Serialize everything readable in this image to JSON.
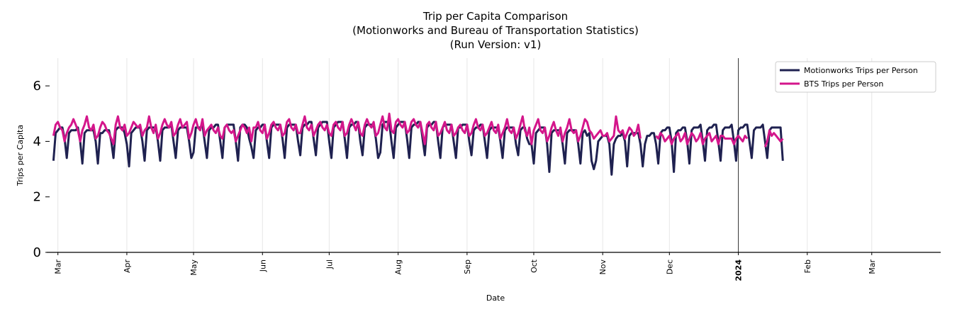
{
  "chart_data": {
    "type": "line",
    "title": [
      "Trip per Capita Comparison",
      "(Motionworks and Bureau of Transportation Statistics)",
      "(Run Version: v1)"
    ],
    "xlabel": "Date",
    "ylabel": "Trips per Capita",
    "xlim": [
      "2023-02-24",
      "2024-04-01"
    ],
    "ylim": [
      0,
      7
    ],
    "yticks": [
      0,
      2,
      4,
      6
    ],
    "xticks": [
      {
        "date": "2023-03-01",
        "label": "Mar"
      },
      {
        "date": "2023-04-01",
        "label": "Apr"
      },
      {
        "date": "2023-05-01",
        "label": "May"
      },
      {
        "date": "2023-06-01",
        "label": "Jun"
      },
      {
        "date": "2023-07-01",
        "label": "Jul"
      },
      {
        "date": "2023-08-01",
        "label": "Aug"
      },
      {
        "date": "2023-09-01",
        "label": "Sep"
      },
      {
        "date": "2023-10-01",
        "label": "Oct"
      },
      {
        "date": "2023-11-01",
        "label": "Nov"
      },
      {
        "date": "2023-12-01",
        "label": "Dec"
      },
      {
        "date": "2024-01-01",
        "label": "2024",
        "bold": true
      },
      {
        "date": "2024-02-01",
        "label": "Feb"
      },
      {
        "date": "2024-03-01",
        "label": "Mar"
      }
    ],
    "grid": "vertical",
    "legend_placement": "top-right",
    "x_start": "2023-02-27",
    "x_step": "daily",
    "series": [
      {
        "name": "Motionworks Trips per Person",
        "color": "#1f2150",
        "values": [
          3.3,
          4.3,
          4.4,
          4.5,
          4.5,
          4.1,
          3.4,
          4.3,
          4.4,
          4.4,
          4.4,
          4.5,
          4.0,
          3.2,
          4.3,
          4.4,
          4.4,
          4.4,
          4.4,
          4.0,
          3.2,
          4.3,
          4.3,
          4.4,
          4.4,
          4.4,
          4.0,
          3.4,
          4.4,
          4.5,
          4.5,
          4.5,
          4.3,
          3.9,
          3.1,
          4.3,
          4.4,
          4.5,
          4.5,
          4.5,
          4.0,
          3.3,
          4.4,
          4.5,
          4.5,
          4.5,
          4.5,
          4.0,
          3.3,
          4.4,
          4.5,
          4.5,
          4.5,
          4.6,
          4.0,
          3.4,
          4.4,
          4.5,
          4.5,
          4.5,
          4.5,
          4.0,
          3.4,
          3.6,
          4.5,
          4.5,
          4.5,
          4.6,
          4.0,
          3.4,
          4.4,
          4.5,
          4.5,
          4.6,
          4.6,
          4.0,
          3.4,
          4.5,
          4.6,
          4.6,
          4.6,
          4.6,
          4.0,
          3.3,
          4.5,
          4.6,
          4.6,
          4.5,
          4.1,
          3.8,
          3.4,
          4.4,
          4.5,
          4.5,
          4.6,
          4.6,
          4.0,
          3.4,
          4.5,
          4.6,
          4.6,
          4.6,
          4.6,
          4.1,
          3.4,
          4.5,
          4.6,
          4.6,
          4.6,
          4.6,
          4.0,
          3.5,
          4.5,
          4.6,
          4.6,
          4.7,
          4.7,
          4.1,
          3.5,
          4.5,
          4.6,
          4.7,
          4.7,
          4.7,
          4.0,
          3.4,
          4.5,
          4.6,
          4.7,
          4.7,
          4.7,
          4.1,
          3.4,
          4.5,
          4.6,
          4.6,
          4.7,
          4.7,
          4.0,
          3.5,
          4.5,
          4.6,
          4.6,
          4.6,
          4.6,
          4.1,
          3.4,
          3.6,
          4.6,
          4.7,
          4.7,
          4.7,
          4.0,
          3.4,
          4.5,
          4.6,
          4.7,
          4.7,
          4.7,
          4.1,
          3.4,
          4.5,
          4.6,
          4.6,
          4.7,
          4.7,
          4.1,
          3.5,
          4.5,
          4.6,
          4.6,
          4.7,
          4.7,
          4.0,
          3.4,
          4.5,
          4.6,
          4.6,
          4.6,
          4.6,
          4.0,
          3.4,
          4.5,
          4.5,
          4.6,
          4.6,
          4.6,
          4.0,
          3.5,
          4.4,
          4.5,
          4.5,
          4.6,
          4.6,
          4.0,
          3.4,
          4.4,
          4.5,
          4.5,
          4.5,
          4.5,
          4.0,
          3.4,
          4.4,
          4.5,
          4.5,
          4.5,
          4.5,
          3.9,
          3.5,
          4.4,
          4.5,
          4.5,
          4.1,
          3.9,
          3.9,
          3.2,
          4.3,
          4.4,
          4.5,
          4.5,
          4.5,
          3.9,
          2.9,
          4.3,
          4.4,
          4.4,
          4.4,
          4.4,
          3.9,
          3.2,
          4.3,
          4.4,
          4.4,
          4.4,
          4.4,
          3.9,
          3.2,
          4.3,
          4.4,
          4.2,
          4.3,
          3.3,
          3.0,
          3.3,
          4.0,
          4.1,
          4.2,
          4.2,
          4.2,
          3.9,
          2.8,
          3.9,
          4.1,
          4.2,
          4.2,
          4.3,
          4.0,
          3.1,
          4.2,
          4.3,
          4.3,
          4.3,
          4.3,
          3.9,
          3.1,
          3.9,
          4.2,
          4.2,
          4.3,
          4.3,
          3.9,
          3.2,
          4.3,
          4.4,
          4.4,
          4.5,
          4.5,
          4.0,
          2.9,
          4.3,
          4.4,
          4.4,
          4.5,
          4.5,
          4.0,
          3.2,
          4.4,
          4.5,
          4.5,
          4.5,
          4.6,
          4.0,
          3.3,
          4.4,
          4.5,
          4.5,
          4.6,
          4.6,
          4.0,
          3.3,
          4.4,
          4.5,
          4.5,
          4.5,
          4.6,
          4.0,
          3.3,
          4.4,
          4.5,
          4.5,
          4.6,
          4.6,
          4.0,
          3.4,
          4.4,
          4.5,
          4.5,
          4.5,
          4.6,
          4.0,
          3.4,
          4.4,
          4.5,
          4.5,
          4.5,
          4.5,
          4.5,
          3.3
        ]
      },
      {
        "name": "BTS Trips per Person",
        "color": "#d4168b",
        "values": [
          4.2,
          4.6,
          4.7,
          4.5,
          4.4,
          4.0,
          4.3,
          4.5,
          4.6,
          4.8,
          4.6,
          4.4,
          4.0,
          4.4,
          4.6,
          4.9,
          4.5,
          4.4,
          4.6,
          4.1,
          4.2,
          4.5,
          4.7,
          4.6,
          4.4,
          4.3,
          4.1,
          3.9,
          4.6,
          4.9,
          4.5,
          4.4,
          4.6,
          4.2,
          4.3,
          4.5,
          4.7,
          4.6,
          4.5,
          4.6,
          4.2,
          4.4,
          4.5,
          4.9,
          4.5,
          4.3,
          4.6,
          4.1,
          4.3,
          4.6,
          4.8,
          4.6,
          4.5,
          4.7,
          4.2,
          4.3,
          4.6,
          4.8,
          4.5,
          4.6,
          4.7,
          4.1,
          4.3,
          4.6,
          4.8,
          4.5,
          4.4,
          4.8,
          4.2,
          4.4,
          4.5,
          4.6,
          4.4,
          4.3,
          4.5,
          4.2,
          4.1,
          4.5,
          4.6,
          4.4,
          4.3,
          4.4,
          4.0,
          4.2,
          4.4,
          4.6,
          4.5,
          4.3,
          4.5,
          4.0,
          4.5,
          4.5,
          4.7,
          4.4,
          4.3,
          4.6,
          4.1,
          4.3,
          4.6,
          4.7,
          4.5,
          4.4,
          4.6,
          4.2,
          4.3,
          4.7,
          4.8,
          4.5,
          4.4,
          4.6,
          4.3,
          4.3,
          4.6,
          4.9,
          4.5,
          4.4,
          4.6,
          4.2,
          4.4,
          4.6,
          4.7,
          4.5,
          4.4,
          4.6,
          4.3,
          4.2,
          4.6,
          4.7,
          4.5,
          4.4,
          4.7,
          4.2,
          4.3,
          4.6,
          4.8,
          4.6,
          4.4,
          4.7,
          4.3,
          4.2,
          4.6,
          4.8,
          4.6,
          4.5,
          4.7,
          4.2,
          4.3,
          4.6,
          4.9,
          4.5,
          4.4,
          5.0,
          4.4,
          4.3,
          4.7,
          4.8,
          4.6,
          4.5,
          4.7,
          4.3,
          4.4,
          4.7,
          4.8,
          4.6,
          4.5,
          4.7,
          4.3,
          3.9,
          4.6,
          4.7,
          4.5,
          4.4,
          4.7,
          4.2,
          4.3,
          4.5,
          4.7,
          4.4,
          4.3,
          4.6,
          4.2,
          4.3,
          4.5,
          4.6,
          4.4,
          4.3,
          4.6,
          4.2,
          4.3,
          4.6,
          4.8,
          4.5,
          4.4,
          4.6,
          4.2,
          4.3,
          4.5,
          4.7,
          4.4,
          4.3,
          4.6,
          4.1,
          4.3,
          4.5,
          4.8,
          4.4,
          4.3,
          4.5,
          4.1,
          4.3,
          4.6,
          4.9,
          4.4,
          4.2,
          4.5,
          3.9,
          4.4,
          4.6,
          4.8,
          4.4,
          4.3,
          4.5,
          4.0,
          4.2,
          4.5,
          4.7,
          4.4,
          4.2,
          4.5,
          4.0,
          4.3,
          4.5,
          4.8,
          4.4,
          4.3,
          4.4,
          4.0,
          4.2,
          4.5,
          4.8,
          4.7,
          4.4,
          4.3,
          4.1,
          4.2,
          4.3,
          4.4,
          4.2,
          4.2,
          4.3,
          4.0,
          4.1,
          4.2,
          4.9,
          4.4,
          4.3,
          4.4,
          4.1,
          4.3,
          4.5,
          4.4,
          4.2,
          4.3,
          4.6,
          4.1,
          null,
          null,
          null,
          null,
          null,
          null,
          4.2,
          4.1,
          4.3,
          4.2,
          4.0,
          4.1,
          4.2,
          3.9,
          4.1,
          4.2,
          4.3,
          4.0,
          4.1,
          4.3,
          3.9,
          4.1,
          4.3,
          4.2,
          4.0,
          4.1,
          4.3,
          3.9,
          4.1,
          4.2,
          4.3,
          4.0,
          4.1,
          4.2,
          3.9,
          4.2,
          4.2,
          4.1,
          4.1,
          4.1,
          4.1,
          3.9,
          4.1,
          4.2,
          4.1,
          4.0,
          4.2,
          4.1,
          null,
          null,
          null,
          null,
          null,
          null,
          null,
          3.8,
          4.0,
          4.4,
          4.2,
          4.3,
          4.2,
          4.1,
          4.0,
          4.1
        ]
      }
    ]
  }
}
